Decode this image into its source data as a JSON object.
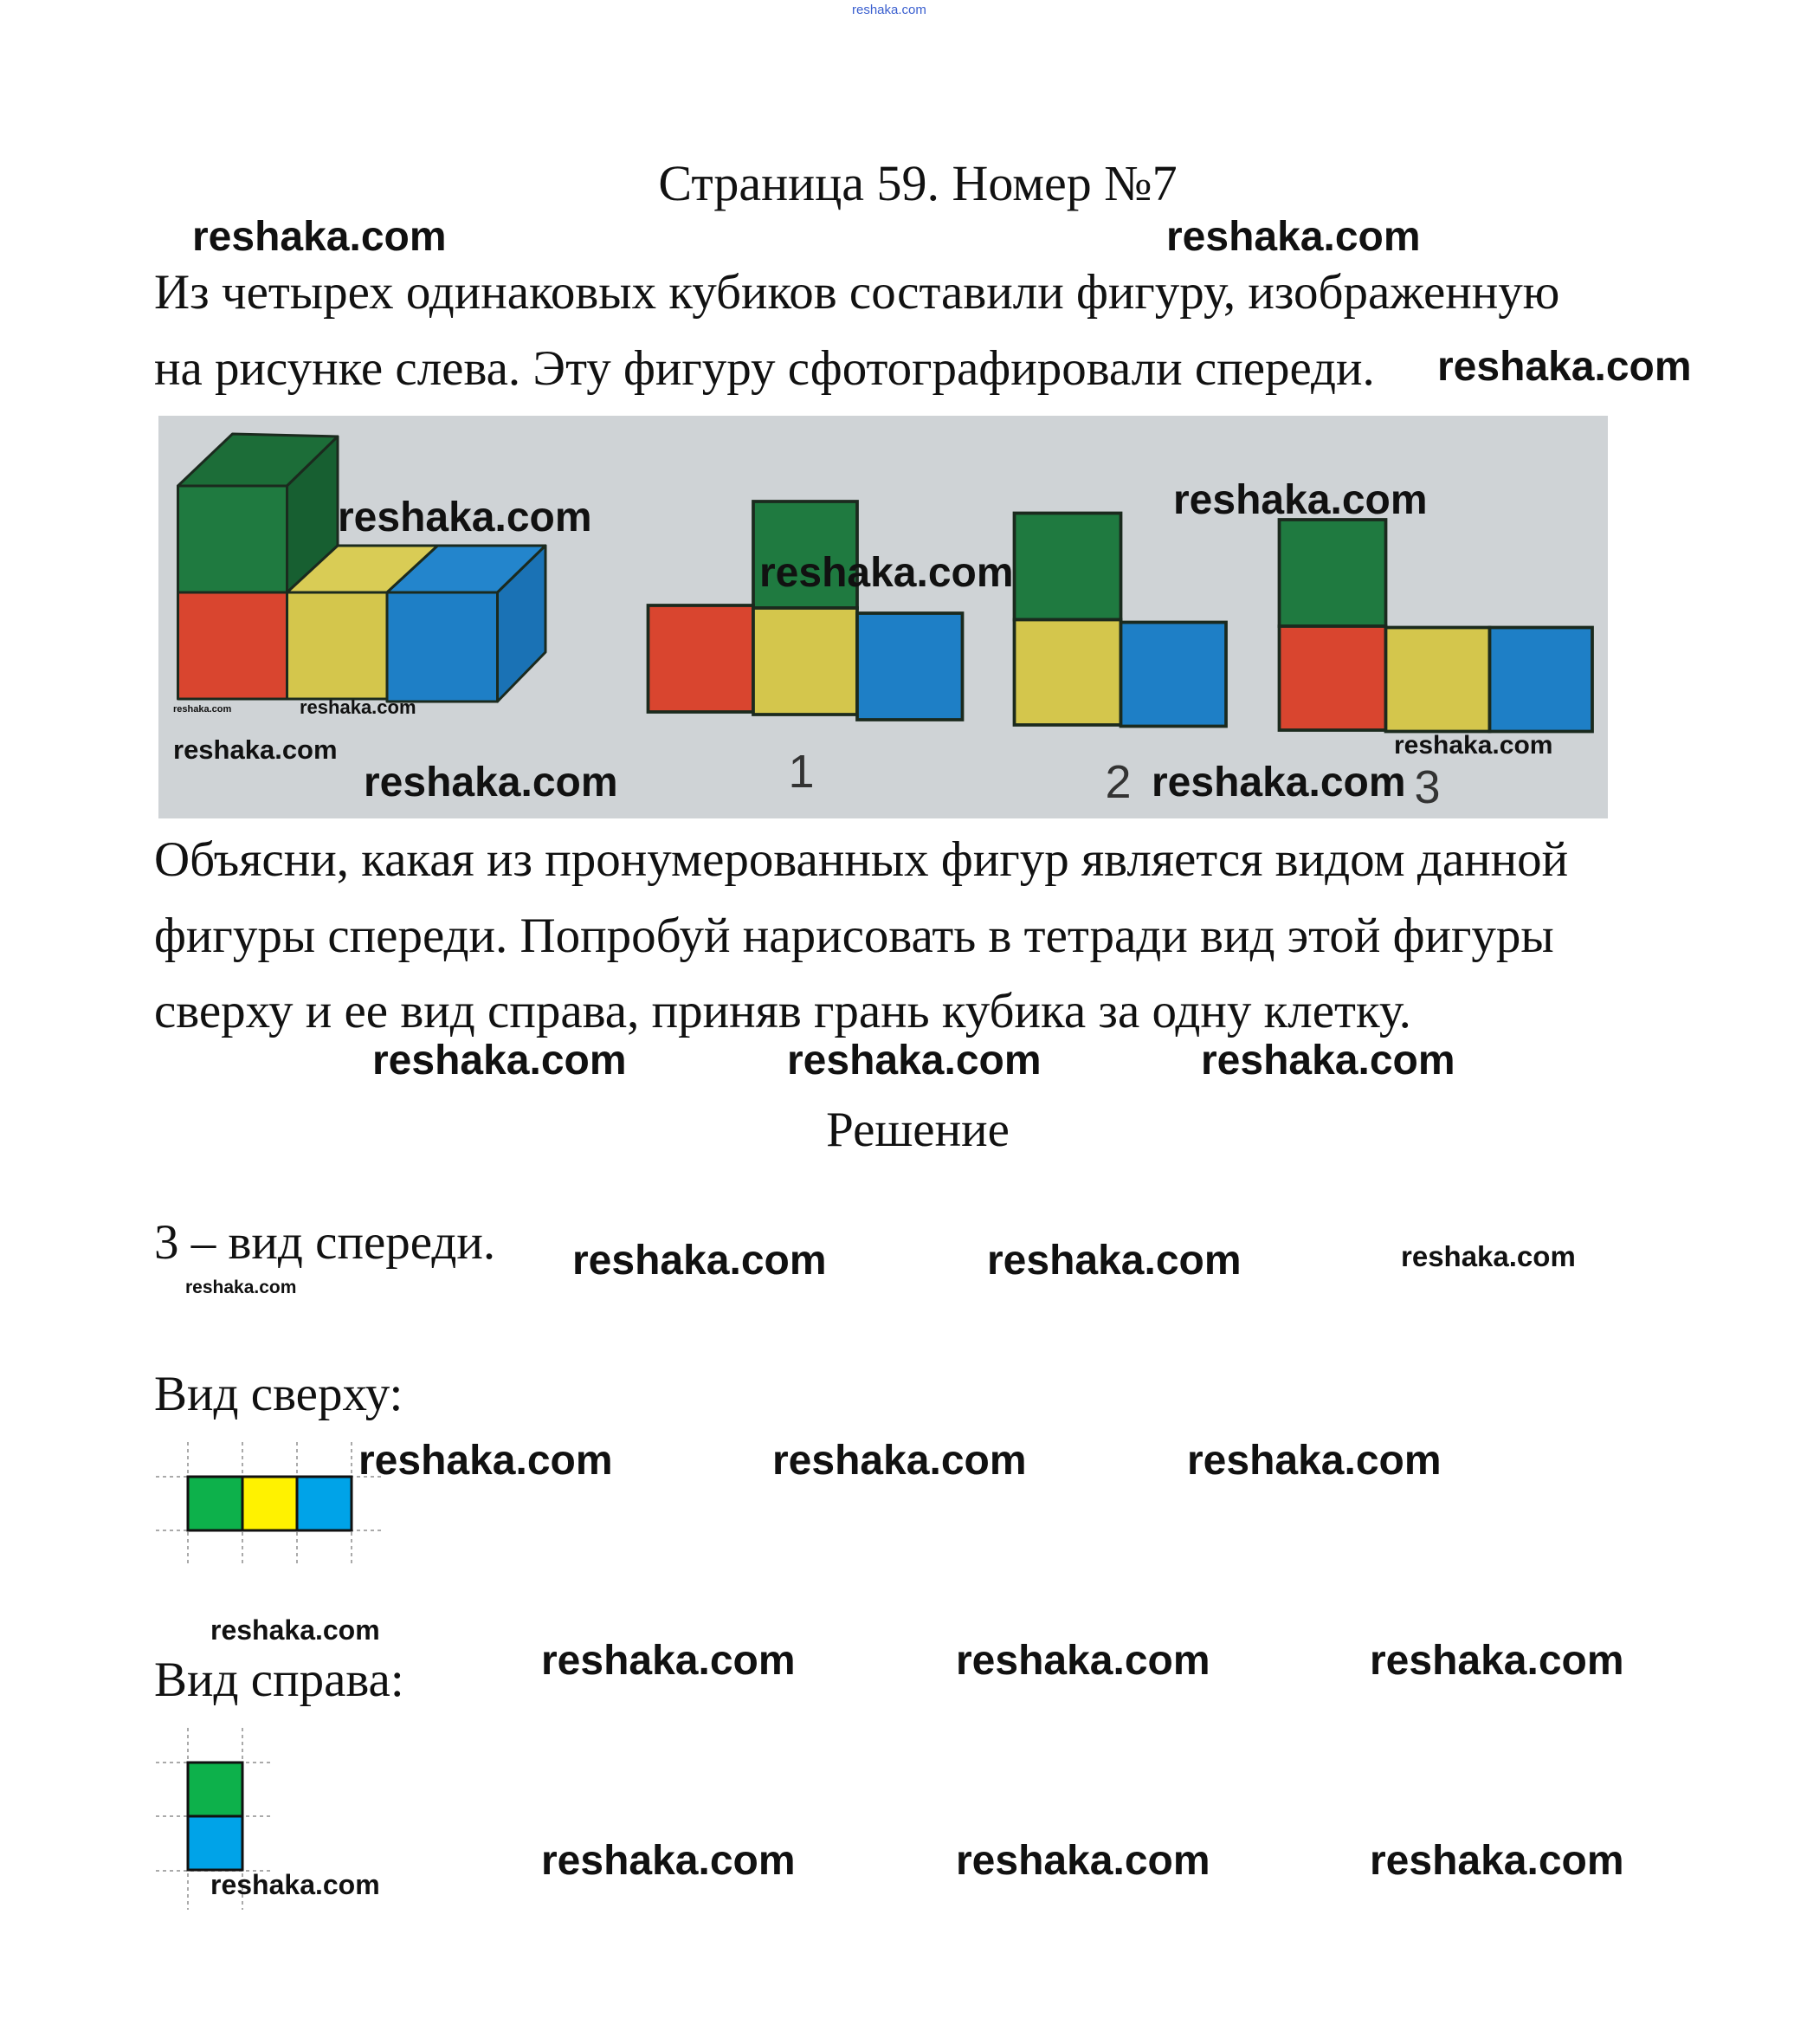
{
  "title": "Страница 59. Номер №7",
  "problem": {
    "lines_1": [
      "Из четырех одинаковых кубиков составили фигуру, изображенную",
      "на рисунке слева. Эту фигуру сфотографировали спереди."
    ],
    "figure_labels": [
      "1",
      "2",
      "3"
    ],
    "lines_2": [
      "Объясни, какая из пронумерованных фигур является видом данной",
      "фигуры спереди. Попробуй нарисовать в тетради вид этой фигуры",
      "сверху и ее вид справа, приняв грань кубика за одну клетку."
    ]
  },
  "solution": {
    "heading": "Решение",
    "answer": "3 – вид спереди.",
    "top_view_label": "Вид сверху:",
    "right_view_label": "Вид справа:",
    "top_view_colors": [
      "#0db14b",
      "#fff200",
      "#00a3e8"
    ],
    "right_view_colors": [
      "#0db14b",
      "#00a3e8"
    ]
  },
  "photo_colors": {
    "green": "#1f7a40",
    "red": "#d9452f",
    "yellow": "#d4c64c",
    "blue": "#1e7fc6",
    "background": "#cfd3d6"
  },
  "watermarks": [
    "reshaka.com",
    "reshaka.com",
    "reshaka.com",
    "reshaka.com",
    "reshaka.com",
    "reshaka.com",
    "reshaka.com",
    "reshaka.com",
    "reshaka.com",
    "reshaka.com",
    "reshaka.com",
    "reshaka.com",
    "reshaka.com",
    "reshaka.com",
    "reshaka.com",
    "reshaka.com",
    "reshaka.com",
    "reshaka.com",
    "reshaka.com",
    "reshaka.com",
    "reshaka.com",
    "reshaka.com",
    "reshaka.com",
    "reshaka.com",
    "reshaka.com",
    "reshaka.com",
    "reshaka.com",
    "reshaka.com",
    "reshaka.com",
    "reshaka.com",
    "reshaka.com"
  ]
}
